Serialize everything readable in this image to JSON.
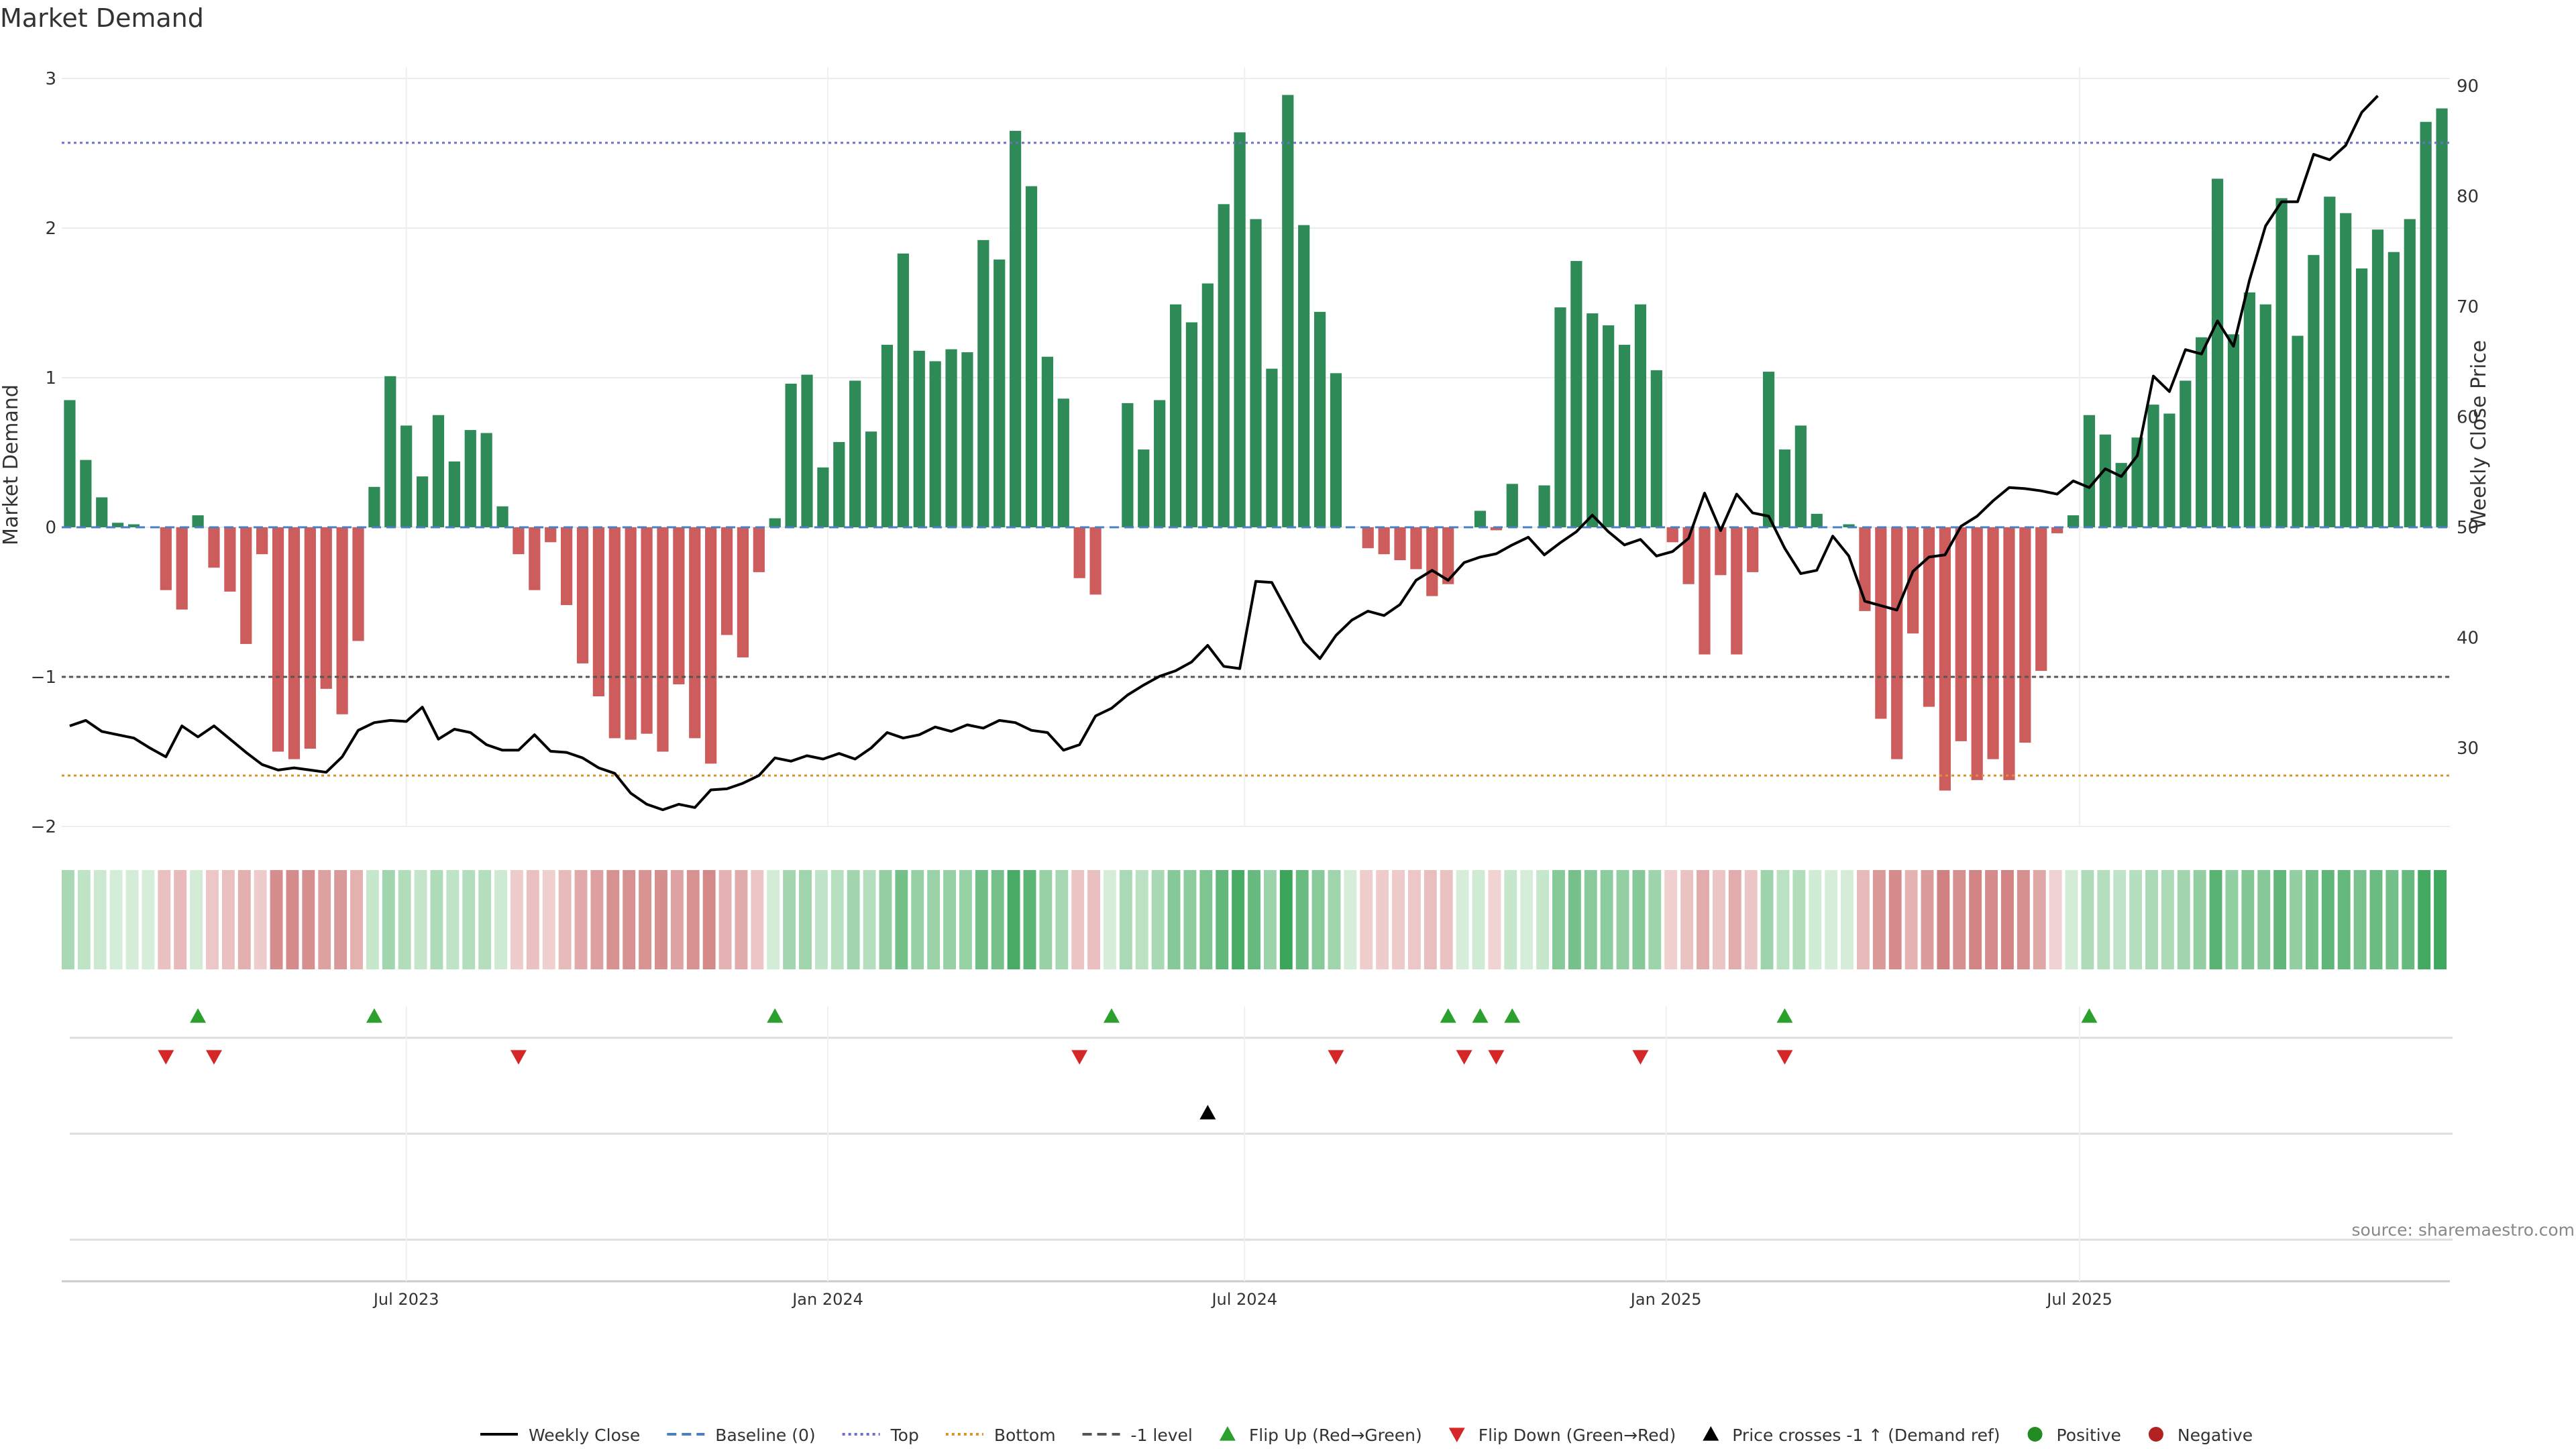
{
  "chart_data": {
    "type": "bar",
    "title": "Market Demand",
    "ylabel": "Market Demand",
    "y2label": "Weekly Close Price",
    "ylim": [
      -2,
      3
    ],
    "y2lim": [
      20,
      90
    ],
    "yticks": [
      {
        "v": 3,
        "label": "3"
      },
      {
        "v": 2,
        "label": "2"
      },
      {
        "v": 1,
        "label": "1"
      },
      {
        "v": 0,
        "label": "0"
      },
      {
        "v": -1,
        "label": "−1"
      },
      {
        "v": -2,
        "label": "−2"
      }
    ],
    "y2ticks": [
      {
        "v": 90,
        "label": "90"
      },
      {
        "v": 80,
        "label": "80"
      },
      {
        "v": 70,
        "label": "70"
      },
      {
        "v": 60,
        "label": "60"
      },
      {
        "v": 50,
        "label": "50"
      },
      {
        "v": 40,
        "label": "40"
      },
      {
        "v": 30,
        "label": "30"
      }
    ],
    "xticks": [
      {
        "week": 21.5,
        "label": "Jul 2023"
      },
      {
        "week": 47.8,
        "label": "Jan 2024"
      },
      {
        "week": 73.8,
        "label": "Jul 2024"
      },
      {
        "week": 100.1,
        "label": "Jan 2025"
      },
      {
        "week": 125.9,
        "label": "Jul 2025"
      }
    ],
    "demand": [
      0.85,
      0.45,
      0.2,
      0.03,
      0.02,
      0,
      -0.42,
      -0.55,
      0.08,
      -0.27,
      -0.43,
      -0.78,
      -0.18,
      -1.5,
      -1.55,
      -1.48,
      -1.08,
      -1.25,
      -0.76,
      0.27,
      1.01,
      0.68,
      0.34,
      0.75,
      0.44,
      0.65,
      0.63,
      0.14,
      -0.18,
      -0.42,
      -0.1,
      -0.52,
      -0.91,
      -1.13,
      -1.41,
      -1.42,
      -1.38,
      -1.5,
      -1.05,
      -1.41,
      -1.58,
      -0.72,
      -0.87,
      -0.3,
      0.06,
      0.96,
      1.02,
      0.4,
      0.57,
      0.98,
      0.64,
      1.22,
      1.83,
      1.18,
      1.11,
      1.19,
      1.17,
      1.92,
      1.79,
      2.65,
      2.28,
      1.14,
      0.86,
      -0.34,
      -0.45,
      0,
      0.83,
      0.52,
      0.85,
      1.49,
      1.37,
      1.63,
      2.16,
      2.64,
      2.06,
      1.06,
      2.89,
      2.02,
      1.44,
      1.03,
      0,
      -0.14,
      -0.18,
      -0.22,
      -0.28,
      -0.46,
      -0.38,
      0,
      0.11,
      -0.02,
      0.29,
      0,
      0.28,
      1.47,
      1.78,
      1.43,
      1.35,
      1.22,
      1.49,
      1.05,
      -0.1,
      -0.38,
      -0.85,
      -0.32,
      -0.85,
      -0.3,
      1.04,
      0.52,
      0.68,
      0.09,
      0,
      0.02,
      -0.56,
      -1.28,
      -1.55,
      -0.71,
      -1.2,
      -1.76,
      -1.43,
      -1.69,
      -1.55,
      -1.69,
      -1.44,
      -0.96,
      -0.04,
      0.08,
      0.75,
      0.62,
      0.43,
      0.6,
      0.82,
      0.76,
      0.98,
      1.27,
      2.33,
      1.29,
      1.57,
      1.49,
      2.2,
      1.28,
      1.82,
      2.21,
      2.1,
      1.73,
      1.99,
      1.84,
      2.06,
      2.71,
      2.8
    ],
    "price": [
      32,
      32.5,
      31.5,
      31.2,
      30.9,
      30,
      29.2,
      32,
      31,
      32,
      30.8,
      29.6,
      28.5,
      28,
      28.2,
      28,
      27.8,
      29.2,
      31.6,
      32.3,
      32.5,
      32.4,
      33.7,
      30.8,
      31.7,
      31.4,
      30.3,
      29.8,
      29.8,
      31.2,
      29.7,
      29.6,
      29.1,
      28.2,
      27.7,
      25.9,
      24.9,
      24.4,
      24.9,
      24.6,
      26.2,
      26.3,
      26.8,
      27.5,
      29.1,
      28.8,
      29.3,
      29,
      29.5,
      29,
      30,
      31.4,
      30.9,
      31.2,
      31.9,
      31.5,
      32.1,
      31.8,
      32.5,
      32.3,
      31.6,
      31.4,
      29.8,
      30.3,
      32.9,
      33.6,
      34.8,
      35.7,
      36.5,
      37,
      37.8,
      39.3,
      37.4,
      37.2,
      45.1,
      45,
      42.3,
      39.6,
      38.1,
      40.2,
      41.6,
      42.4,
      42,
      43,
      45.2,
      46.1,
      45.2,
      46.8,
      47.3,
      47.6,
      48.4,
      49.1,
      47.5,
      48.6,
      49.6,
      51.1,
      49.6,
      48.4,
      48.9,
      47.4,
      47.8,
      49,
      53.1,
      49.7,
      53,
      51.3,
      51,
      48.1,
      45.8,
      46.1,
      49.2,
      47.4,
      43.3,
      42.9,
      42.5,
      46,
      47.3,
      47.5,
      50.1,
      51,
      52.4,
      53.6,
      53.5,
      53.3,
      53,
      54.2,
      53.6,
      55.3,
      54.6,
      56.5,
      63.7,
      62.3,
      66.1,
      65.7,
      68.7,
      66.4,
      72.4,
      77.3,
      79.5,
      79.5,
      83.8,
      83.3,
      84.6,
      87.6,
      89.1
    ],
    "flip_up": [
      8,
      19,
      44,
      65,
      86,
      88,
      90,
      107,
      126
    ],
    "flip_down": [
      6,
      9,
      28,
      63,
      79,
      87,
      89,
      98,
      107
    ],
    "price_cross": [
      71
    ],
    "levels": [
      {
        "name": "Top",
        "value": 2.57,
        "color": "#6b6fd0"
      },
      {
        "name": "Baseline (0)",
        "value": 0,
        "color": "#4a7fc0"
      },
      {
        "name": "-1 level",
        "value": -1,
        "color": "#555555"
      },
      {
        "name": "Bottom",
        "value": -1.66,
        "color": "#d9922e"
      }
    ],
    "colors": {
      "positive": "#2e8b57",
      "negative": "#cd5c5c",
      "flip_up": "#2ca02c",
      "flip_down": "#d62728",
      "cross": "#000000",
      "price": "#000000"
    },
    "legend": [
      {
        "label": "Weekly Close",
        "kind": "line",
        "color": "#000000"
      },
      {
        "label": "Baseline (0)",
        "kind": "dash",
        "color": "#4a7fc0"
      },
      {
        "label": "Top",
        "kind": "dot",
        "color": "#6b6fd0"
      },
      {
        "label": "Bottom",
        "kind": "dot",
        "color": "#d9922e"
      },
      {
        "label": "-1 level",
        "kind": "dash",
        "color": "#555555"
      },
      {
        "label": "Flip Up (Red→Green)",
        "kind": "tri-up",
        "color": "#2ca02c"
      },
      {
        "label": "Flip Down (Green→Red)",
        "kind": "tri-down",
        "color": "#d62728"
      },
      {
        "label": "Price crosses -1 ↑ (Demand ref)",
        "kind": "tri-up",
        "color": "#000000"
      },
      {
        "label": "Positive",
        "kind": "circle",
        "color": "#228b22"
      },
      {
        "label": "Negative",
        "kind": "circle",
        "color": "#b22222"
      }
    ],
    "legend_position": "bottom-center",
    "source": "source: sharemaestro.com"
  }
}
